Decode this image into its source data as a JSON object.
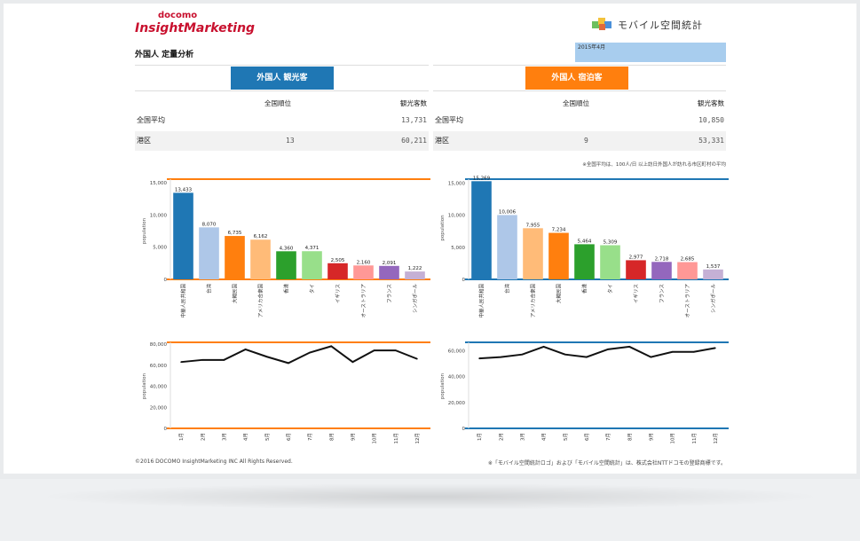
{
  "header": {
    "brand_small": "docomo",
    "brand_big": "InsightMarketing",
    "product_name": "モバイル空間統計",
    "report_title": "外国人 定量分析",
    "date_label": "2015年4月"
  },
  "tabs": [
    {
      "label": "外国人 観光客",
      "color": "#1f77b4"
    },
    {
      "label": "外国人 宿泊客",
      "color": "#ff7f0e"
    }
  ],
  "tables": [
    {
      "col_rank": "全国順位",
      "col_count": "観光客数",
      "rows": [
        {
          "label": "全国平均",
          "rank": "",
          "count": "13,731"
        },
        {
          "label": "港区",
          "rank": "13",
          "count": "60,211"
        }
      ]
    },
    {
      "col_rank": "全国順位",
      "col_count": "観光客数",
      "rows": [
        {
          "label": "全国平均",
          "rank": "",
          "count": "10,850"
        },
        {
          "label": "港区",
          "rank": "9",
          "count": "53,331"
        }
      ]
    }
  ],
  "note": "※全国平均は、100人/日 以上訪日外国人が訪れる市区町村の平均",
  "footer": {
    "copyright": "©2016 DOCOMO InsightMarketing INC All Rights Reserved.",
    "trademark": "※「モバイル空間統計ロゴ」および「モバイル空間統計」は、株式会社NTTドコモの登録商標です。"
  },
  "chart_data": [
    {
      "type": "bar",
      "ylabel": "population",
      "ylim": [
        0,
        15000
      ],
      "yticks": [
        "15,000",
        "10,000",
        "5,000",
        "0"
      ],
      "accent": "#ff7f0e",
      "categories": [
        "中華人民共和国",
        "台湾",
        "大韓民国",
        "アメリカ合衆国",
        "香港",
        "タイ",
        "イギリス",
        "オーストラリア",
        "フランス",
        "シンガポール"
      ],
      "values": [
        13433,
        8070,
        6735,
        6162,
        4360,
        4371,
        2505,
        2160,
        2091,
        1222
      ],
      "labels": [
        "13,433",
        "8,070",
        "6,735",
        "6,162",
        "4,360",
        "4,371",
        "2,505",
        "2,160",
        "2,091",
        "1,222"
      ],
      "colors": [
        "#1f77b4",
        "#aec7e8",
        "#ff7f0e",
        "#ffbb78",
        "#2ca02c",
        "#98df8a",
        "#d62728",
        "#ff9896",
        "#9467bd",
        "#c5b0d5"
      ]
    },
    {
      "type": "bar",
      "ylabel": "population",
      "ylim": [
        0,
        16000
      ],
      "yticks": [
        "15,000",
        "10,000",
        "5,000",
        "0"
      ],
      "accent": "#1f77b4",
      "categories": [
        "中華人民共和国",
        "台湾",
        "アメリカ合衆国",
        "大韓民国",
        "香港",
        "タイ",
        "イギリス",
        "フランス",
        "オーストラリア",
        "シンガポール"
      ],
      "values": [
        15269,
        10006,
        7955,
        7234,
        5464,
        5309,
        2977,
        2718,
        2685,
        1537
      ],
      "labels": [
        "15,269",
        "10,006",
        "7,955",
        "7,234",
        "5,464",
        "5,309",
        "2,977",
        "2,718",
        "2,685",
        "1,537"
      ],
      "colors": [
        "#1f77b4",
        "#aec7e8",
        "#ffbb78",
        "#ff7f0e",
        "#2ca02c",
        "#98df8a",
        "#d62728",
        "#9467bd",
        "#ff9896",
        "#c5b0d5"
      ]
    },
    {
      "type": "line",
      "ylabel": "population",
      "ylim": [
        0,
        80000
      ],
      "yticks": [
        "80,000",
        "60,000",
        "40,000",
        "20,000",
        "0"
      ],
      "accent": "#ff7f0e",
      "categories": [
        "1月",
        "2月",
        "3月",
        "4月",
        "5月",
        "6月",
        "7月",
        "8月",
        "9月",
        "10月",
        "11月",
        "12月"
      ],
      "values": [
        63000,
        65000,
        65000,
        75000,
        68000,
        62000,
        72000,
        78000,
        63000,
        74000,
        74000,
        66000
      ]
    },
    {
      "type": "line",
      "ylabel": "population",
      "ylim": [
        0,
        65000
      ],
      "yticks": [
        "60,000",
        "40,000",
        "20,000",
        "0"
      ],
      "accent": "#1f77b4",
      "categories": [
        "1月",
        "2月",
        "3月",
        "4月",
        "5月",
        "6月",
        "7月",
        "8月",
        "9月",
        "10月",
        "11月",
        "12月"
      ],
      "values": [
        54000,
        55000,
        57000,
        63000,
        57000,
        55000,
        61000,
        63000,
        55000,
        59000,
        59000,
        62000
      ]
    }
  ]
}
